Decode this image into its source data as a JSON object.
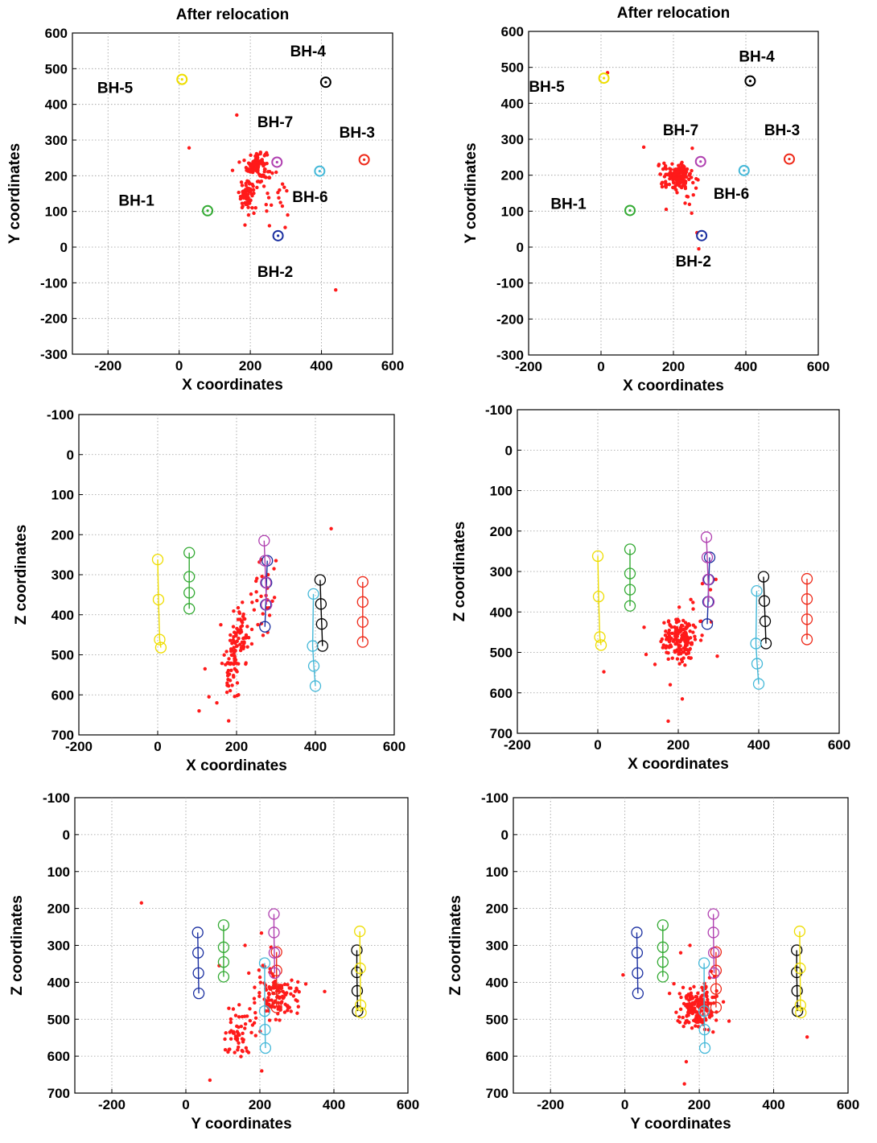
{
  "chart_data": [
    {
      "id": "p1",
      "type": "scatter",
      "title": "After relocation",
      "xlabel": "X coordinates",
      "ylabel": "Y coordinates",
      "xlim": [
        -300,
        600
      ],
      "ylim": [
        -300,
        600
      ],
      "y_reversed": false,
      "xticks": [
        -200,
        0,
        200,
        400,
        600
      ],
      "yticks": [
        -300,
        -200,
        -100,
        0,
        100,
        200,
        300,
        400,
        500,
        600
      ],
      "grid": true,
      "boreholes": [
        {
          "name": "BH-1",
          "x": 80,
          "y": 102,
          "color": "#33aa33"
        },
        {
          "name": "BH-2",
          "x": 278,
          "y": 32,
          "color": "#1a2fa0"
        },
        {
          "name": "BH-3",
          "x": 520,
          "y": 245,
          "color": "#ee2a1a"
        },
        {
          "name": "BH-4",
          "x": 412,
          "y": 462,
          "color": "#000000"
        },
        {
          "name": "BH-5",
          "x": 8,
          "y": 470,
          "color": "#eedd00"
        },
        {
          "name": "BH-6",
          "x": 395,
          "y": 213,
          "color": "#44b8d8"
        },
        {
          "name": "BH-7",
          "x": 275,
          "y": 238,
          "color": "#b040b0"
        }
      ],
      "labels": [
        {
          "text": "BH-1",
          "x": -120,
          "y": 130
        },
        {
          "text": "BH-2",
          "x": 270,
          "y": -70
        },
        {
          "text": "BH-3",
          "x": 500,
          "y": 320
        },
        {
          "text": "BH-4",
          "x": 362,
          "y": 548
        },
        {
          "text": "BH-5",
          "x": -180,
          "y": 445
        },
        {
          "text": "BH-6",
          "x": 368,
          "y": 140
        },
        {
          "text": "BH-7",
          "x": 270,
          "y": 350
        }
      ],
      "events": [
        [
          162,
          370
        ],
        [
          28,
          278
        ],
        [
          440,
          -120
        ],
        [
          150,
          215
        ],
        [
          175,
          182
        ],
        [
          305,
          90
        ],
        [
          298,
          55
        ],
        [
          185,
          62
        ],
        [
          290,
          115
        ],
        [
          282,
          160
        ],
        [
          280,
          138
        ],
        [
          215,
          110
        ],
        [
          210,
          95
        ]
      ],
      "clusters": [
        {
          "cx": 218,
          "cy": 230,
          "sx": 14,
          "sy": 22,
          "n": 95
        },
        {
          "cx": 190,
          "cy": 145,
          "sx": 11,
          "sy": 18,
          "n": 60
        },
        {
          "cx": 250,
          "cy": 175,
          "sx": 25,
          "sy": 45,
          "n": 22
        }
      ]
    },
    {
      "id": "p2",
      "type": "scatter",
      "title": "After relocation",
      "xlabel": "X coordinates",
      "ylabel": "Y coordinates",
      "xlim": [
        -200,
        600
      ],
      "ylim": [
        -300,
        600
      ],
      "y_reversed": false,
      "xticks": [
        -200,
        0,
        200,
        400,
        600
      ],
      "yticks": [
        -300,
        -200,
        -100,
        0,
        100,
        200,
        300,
        400,
        500,
        600
      ],
      "grid": true,
      "boreholes": [
        {
          "name": "BH-1",
          "x": 80,
          "y": 102,
          "color": "#33aa33"
        },
        {
          "name": "BH-2",
          "x": 278,
          "y": 32,
          "color": "#1a2fa0"
        },
        {
          "name": "BH-3",
          "x": 520,
          "y": 245,
          "color": "#ee2a1a"
        },
        {
          "name": "BH-4",
          "x": 412,
          "y": 462,
          "color": "#000000"
        },
        {
          "name": "BH-5",
          "x": 8,
          "y": 470,
          "color": "#eedd00"
        },
        {
          "name": "BH-6",
          "x": 395,
          "y": 213,
          "color": "#44b8d8"
        },
        {
          "name": "BH-7",
          "x": 275,
          "y": 238,
          "color": "#b040b0"
        }
      ],
      "labels": [
        {
          "text": "BH-1",
          "x": -90,
          "y": 120
        },
        {
          "text": "BH-2",
          "x": 255,
          "y": -40
        },
        {
          "text": "BH-3",
          "x": 500,
          "y": 325
        },
        {
          "text": "BH-4",
          "x": 430,
          "y": 530
        },
        {
          "text": "BH-5",
          "x": -150,
          "y": 445
        },
        {
          "text": "BH-6",
          "x": 360,
          "y": 148
        },
        {
          "text": "BH-7",
          "x": 220,
          "y": 325
        }
      ],
      "events": [
        [
          18,
          485
        ],
        [
          118,
          278
        ],
        [
          270,
          -5
        ],
        [
          240,
          140
        ],
        [
          255,
          145
        ],
        [
          252,
          275
        ],
        [
          180,
          105
        ],
        [
          160,
          230
        ],
        [
          265,
          40
        ]
      ],
      "clusters": [
        {
          "cx": 212,
          "cy": 198,
          "sx": 20,
          "sy": 16,
          "n": 150
        },
        {
          "cx": 230,
          "cy": 185,
          "sx": 30,
          "sy": 35,
          "n": 15
        }
      ]
    },
    {
      "id": "p3",
      "type": "scatter",
      "title": "",
      "xlabel": "X coordinates",
      "ylabel": "Z coordinates",
      "xlim": [
        -200,
        600
      ],
      "ylim": [
        -100,
        700
      ],
      "y_reversed": true,
      "xticks": [
        -200,
        0,
        200,
        400,
        600
      ],
      "yticks": [
        -100,
        0,
        100,
        200,
        300,
        400,
        500,
        600,
        700
      ],
      "grid": true,
      "strings": [
        {
          "name": "BH-1",
          "x": [
            80,
            80,
            80,
            80
          ],
          "z": [
            245,
            305,
            345,
            385
          ],
          "color": "#33aa33"
        },
        {
          "name": "BH-2",
          "x": [
            278,
            276,
            274,
            272
          ],
          "z": [
            265,
            320,
            375,
            430
          ],
          "color": "#1a2fa0"
        },
        {
          "name": "BH-3",
          "x": [
            520,
            520,
            520,
            520
          ],
          "z": [
            318,
            368,
            418,
            468
          ],
          "color": "#ee2a1a"
        },
        {
          "name": "BH-4",
          "x": [
            412,
            414,
            416,
            418
          ],
          "z": [
            313,
            373,
            423,
            478
          ],
          "color": "#000000"
        },
        {
          "name": "BH-5",
          "x": [
            0,
            2,
            5,
            8
          ],
          "z": [
            262,
            362,
            462,
            482
          ],
          "color": "#eedd00"
        },
        {
          "name": "BH-6",
          "x": [
            395,
            393,
            396,
            400
          ],
          "z": [
            348,
            478,
            528,
            578
          ],
          "color": "#44b8d8"
        },
        {
          "name": "BH-7",
          "x": [
            270,
            272,
            274,
            276
          ],
          "z": [
            215,
            265,
            320,
            375
          ],
          "color": "#b040b0"
        }
      ],
      "events": [
        [
          440,
          185
        ],
        [
          160,
          425
        ],
        [
          105,
          640
        ],
        [
          130,
          605
        ],
        [
          180,
          665
        ],
        [
          120,
          535
        ],
        [
          300,
          265
        ],
        [
          280,
          300
        ],
        [
          295,
          285
        ],
        [
          150,
          620
        ]
      ],
      "clusters": [
        {
          "cx": 212,
          "cy": 455,
          "sx": 12,
          "sy": 35,
          "n": 60
        },
        {
          "cx": 190,
          "cy": 520,
          "sx": 10,
          "sy": 40,
          "n": 60
        },
        {
          "cx": 262,
          "cy": 360,
          "sx": 20,
          "sy": 45,
          "n": 25
        }
      ]
    },
    {
      "id": "p4",
      "type": "scatter",
      "title": "",
      "xlabel": "X coordinates",
      "ylabel": "Z coordinates",
      "xlim": [
        -200,
        600
      ],
      "ylim": [
        -100,
        700
      ],
      "y_reversed": true,
      "xticks": [
        -200,
        0,
        200,
        400,
        600
      ],
      "yticks": [
        -100,
        0,
        100,
        200,
        300,
        400,
        500,
        600,
        700
      ],
      "grid": true,
      "strings": [
        {
          "name": "BH-1",
          "x": [
            80,
            80,
            80,
            80
          ],
          "z": [
            245,
            305,
            345,
            385
          ],
          "color": "#33aa33"
        },
        {
          "name": "BH-2",
          "x": [
            278,
            276,
            274,
            272
          ],
          "z": [
            265,
            320,
            375,
            430
          ],
          "color": "#1a2fa0"
        },
        {
          "name": "BH-3",
          "x": [
            520,
            520,
            520,
            520
          ],
          "z": [
            318,
            368,
            418,
            468
          ],
          "color": "#ee2a1a"
        },
        {
          "name": "BH-4",
          "x": [
            412,
            414,
            416,
            418
          ],
          "z": [
            313,
            373,
            423,
            478
          ],
          "color": "#000000"
        },
        {
          "name": "BH-5",
          "x": [
            0,
            2,
            5,
            8
          ],
          "z": [
            262,
            362,
            462,
            482
          ],
          "color": "#eedd00"
        },
        {
          "name": "BH-6",
          "x": [
            395,
            393,
            396,
            400
          ],
          "z": [
            348,
            478,
            528,
            578
          ],
          "color": "#44b8d8"
        },
        {
          "name": "BH-7",
          "x": [
            270,
            272,
            274,
            276
          ],
          "z": [
            215,
            265,
            320,
            375
          ],
          "color": "#b040b0"
        }
      ],
      "events": [
        [
          15,
          548
        ],
        [
          115,
          438
        ],
        [
          175,
          670
        ],
        [
          210,
          615
        ],
        [
          120,
          505
        ],
        [
          260,
          330
        ],
        [
          280,
          345
        ],
        [
          180,
          580
        ]
      ],
      "clusters": [
        {
          "cx": 205,
          "cy": 465,
          "sx": 22,
          "sy": 30,
          "n": 150
        },
        {
          "cx": 220,
          "cy": 450,
          "sx": 35,
          "sy": 60,
          "n": 15
        }
      ]
    },
    {
      "id": "p5",
      "type": "scatter",
      "title": "",
      "xlabel": "Y coordinates",
      "ylabel": "Z coordinates",
      "xlim": [
        -300,
        600
      ],
      "ylim": [
        -100,
        700
      ],
      "y_reversed": true,
      "xticks": [
        -200,
        0,
        200,
        400,
        600
      ],
      "yticks": [
        -100,
        0,
        100,
        200,
        300,
        400,
        500,
        600,
        700
      ],
      "grid": true,
      "strings": [
        {
          "name": "BH-1",
          "x": [
            102,
            102,
            102,
            102
          ],
          "z": [
            245,
            305,
            345,
            385
          ],
          "color": "#33aa33"
        },
        {
          "name": "BH-2",
          "x": [
            32,
            33,
            34,
            35
          ],
          "z": [
            265,
            320,
            375,
            430
          ],
          "color": "#1a2fa0"
        },
        {
          "name": "BH-3",
          "x": [
            245,
            245,
            245,
            245
          ],
          "z": [
            318,
            368,
            418,
            468
          ],
          "color": "#ee2a1a"
        },
        {
          "name": "BH-4",
          "x": [
            462,
            462,
            463,
            464
          ],
          "z": [
            313,
            373,
            423,
            478
          ],
          "color": "#000000"
        },
        {
          "name": "BH-5",
          "x": [
            470,
            471,
            472,
            473
          ],
          "z": [
            262,
            362,
            462,
            482
          ],
          "color": "#eedd00"
        },
        {
          "name": "BH-6",
          "x": [
            213,
            213,
            214,
            215
          ],
          "z": [
            348,
            478,
            528,
            578
          ],
          "color": "#44b8d8"
        },
        {
          "name": "BH-7",
          "x": [
            238,
            238,
            239,
            240
          ],
          "z": [
            215,
            265,
            320,
            375
          ],
          "color": "#b040b0"
        }
      ],
      "events": [
        [
          -120,
          185
        ],
        [
          375,
          425
        ],
        [
          65,
          665
        ],
        [
          205,
          640
        ],
        [
          160,
          300
        ],
        [
          230,
          305
        ],
        [
          90,
          355
        ],
        [
          170,
          375
        ],
        [
          300,
          420
        ]
      ],
      "clusters": [
        {
          "cx": 248,
          "cy": 440,
          "sx": 28,
          "sy": 30,
          "n": 110
        },
        {
          "cx": 140,
          "cy": 545,
          "sx": 18,
          "sy": 30,
          "n": 55
        },
        {
          "cx": 215,
          "cy": 400,
          "sx": 15,
          "sy": 50,
          "n": 15
        }
      ]
    },
    {
      "id": "p6",
      "type": "scatter",
      "title": "",
      "xlabel": "Y coordinates",
      "ylabel": "Z coordinates",
      "xlim": [
        -300,
        600
      ],
      "ylim": [
        -100,
        700
      ],
      "y_reversed": true,
      "xticks": [
        -200,
        0,
        200,
        400,
        600
      ],
      "yticks": [
        -100,
        0,
        100,
        200,
        300,
        400,
        500,
        600,
        700
      ],
      "grid": true,
      "strings": [
        {
          "name": "BH-1",
          "x": [
            102,
            102,
            102,
            102
          ],
          "z": [
            245,
            305,
            345,
            385
          ],
          "color": "#33aa33"
        },
        {
          "name": "BH-2",
          "x": [
            32,
            33,
            34,
            35
          ],
          "z": [
            265,
            320,
            375,
            430
          ],
          "color": "#1a2fa0"
        },
        {
          "name": "BH-3",
          "x": [
            245,
            245,
            245,
            245
          ],
          "z": [
            318,
            368,
            418,
            468
          ],
          "color": "#ee2a1a"
        },
        {
          "name": "BH-4",
          "x": [
            462,
            462,
            463,
            464
          ],
          "z": [
            313,
            373,
            423,
            478
          ],
          "color": "#000000"
        },
        {
          "name": "BH-5",
          "x": [
            470,
            471,
            472,
            473
          ],
          "z": [
            262,
            362,
            462,
            482
          ],
          "color": "#eedd00"
        },
        {
          "name": "BH-6",
          "x": [
            213,
            213,
            214,
            215
          ],
          "z": [
            348,
            478,
            528,
            578
          ],
          "color": "#44b8d8"
        },
        {
          "name": "BH-7",
          "x": [
            238,
            238,
            239,
            240
          ],
          "z": [
            215,
            265,
            320,
            375
          ],
          "color": "#b040b0"
        }
      ],
      "events": [
        [
          -5,
          380
        ],
        [
          490,
          548
        ],
        [
          175,
          300
        ],
        [
          160,
          675
        ],
        [
          165,
          615
        ],
        [
          280,
          505
        ],
        [
          120,
          430
        ],
        [
          150,
          320
        ]
      ],
      "clusters": [
        {
          "cx": 195,
          "cy": 470,
          "sx": 22,
          "sy": 30,
          "n": 160
        },
        {
          "cx": 210,
          "cy": 440,
          "sx": 40,
          "sy": 55,
          "n": 15
        }
      ]
    }
  ]
}
